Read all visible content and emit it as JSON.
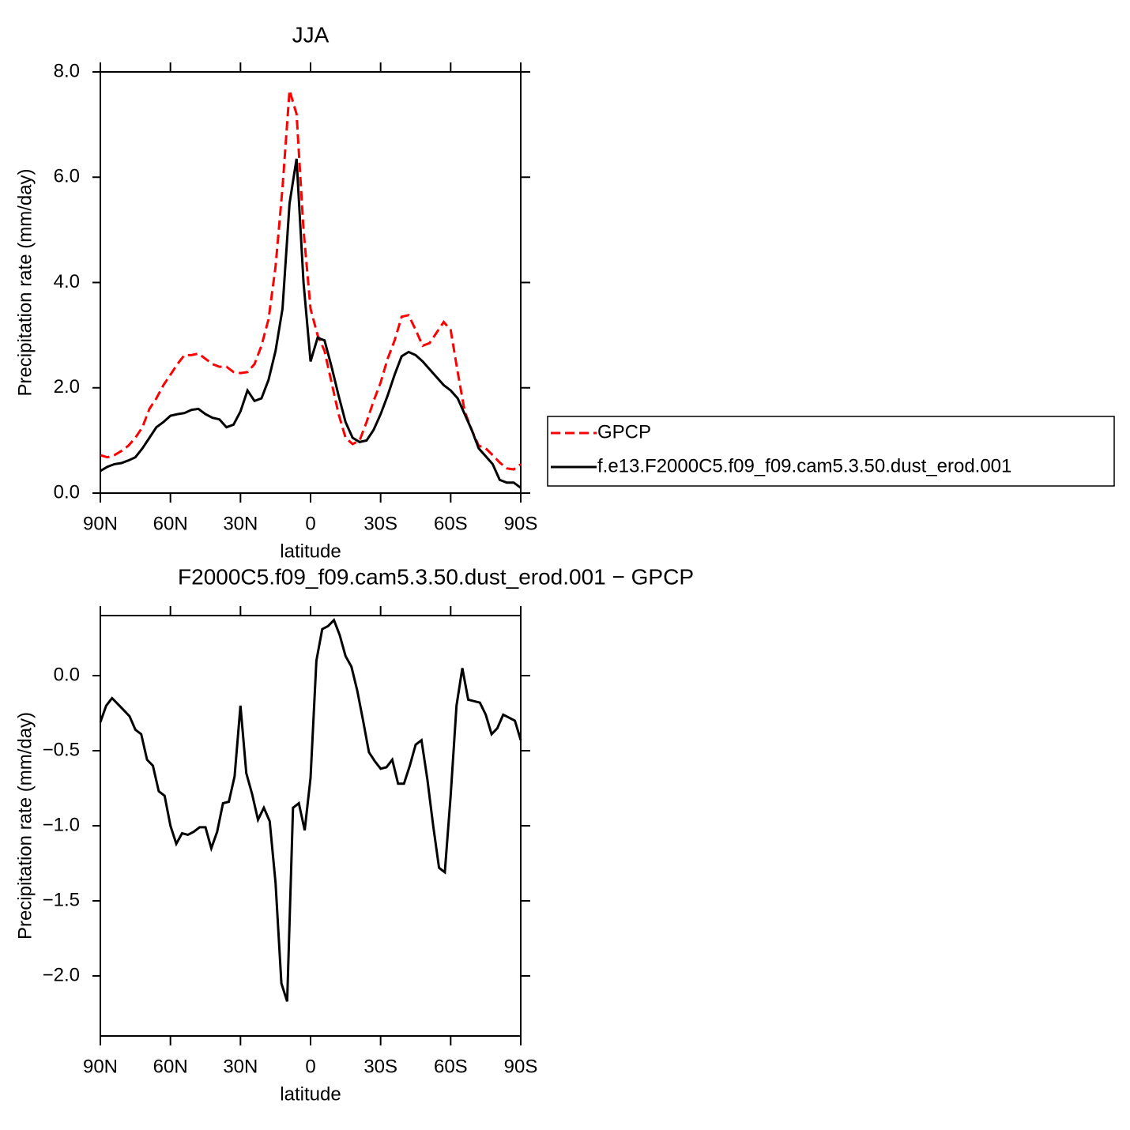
{
  "chart_data": [
    {
      "type": "line",
      "title": "JJA",
      "xlabel": "latitude",
      "ylabel": "Precipitation rate (mm/day)",
      "x": [
        90,
        87,
        84,
        81,
        78,
        75,
        72,
        69,
        66,
        63,
        60,
        57,
        54,
        51,
        48,
        45,
        42,
        39,
        36,
        33,
        30,
        27,
        24,
        21,
        18,
        15,
        12,
        9,
        6,
        3,
        0,
        -3,
        -6,
        -9,
        -12,
        -15,
        -18,
        -21,
        -24,
        -27,
        -30,
        -33,
        -36,
        -39,
        -42,
        -45,
        -48,
        -51,
        -54,
        -57,
        -60,
        -63,
        -66,
        -69,
        -72,
        -75,
        -78,
        -81,
        -84,
        -87,
        -90
      ],
      "xlim": [
        90,
        -90
      ],
      "xticks": [
        {
          "value": 90,
          "label": "90N"
        },
        {
          "value": 60,
          "label": "60N"
        },
        {
          "value": 30,
          "label": "30N"
        },
        0,
        {
          "value": -30,
          "label": "30S"
        },
        {
          "value": -60,
          "label": "60S"
        },
        {
          "value": -90,
          "label": "90S"
        }
      ],
      "ylim": [
        0,
        8
      ],
      "yticks": [
        {
          "value": 0,
          "label": "0.0"
        },
        {
          "value": 2,
          "label": "2.0"
        },
        {
          "value": 4,
          "label": "4.0"
        },
        {
          "value": 6,
          "label": "6.0"
        },
        {
          "value": 8,
          "label": "8.0"
        }
      ],
      "legend": "outside-right",
      "series": [
        {
          "name": "GPCP",
          "color": "#ff0000",
          "dash": true,
          "values": [
            0.72,
            0.68,
            0.72,
            0.8,
            0.9,
            1.05,
            1.25,
            1.6,
            1.8,
            2.05,
            2.25,
            2.45,
            2.62,
            2.62,
            2.65,
            2.55,
            2.45,
            2.4,
            2.4,
            2.3,
            2.28,
            2.3,
            2.45,
            2.8,
            3.3,
            4.3,
            5.8,
            7.65,
            7.2,
            5.0,
            3.5,
            3.0,
            2.7,
            2.1,
            1.5,
            1.05,
            0.93,
            1.0,
            1.35,
            1.75,
            2.1,
            2.55,
            2.9,
            3.35,
            3.38,
            3.1,
            2.8,
            2.85,
            3.05,
            3.25,
            3.1,
            2.3,
            1.55,
            1.2,
            0.9,
            0.85,
            0.72,
            0.58,
            0.47,
            0.45,
            0.55
          ]
        },
        {
          "name": "f.e13.F2000C5.f09_f09.cam5.3.50.dust_erod.001",
          "color": "#000000",
          "dash": false,
          "values": [
            0.42,
            0.5,
            0.55,
            0.57,
            0.62,
            0.68,
            0.85,
            1.05,
            1.25,
            1.35,
            1.47,
            1.5,
            1.52,
            1.58,
            1.6,
            1.5,
            1.43,
            1.4,
            1.25,
            1.3,
            1.55,
            1.95,
            1.75,
            1.8,
            2.15,
            2.7,
            3.5,
            5.5,
            6.35,
            4.0,
            2.5,
            2.95,
            2.9,
            2.4,
            1.85,
            1.35,
            1.05,
            0.97,
            1.0,
            1.2,
            1.5,
            1.85,
            2.25,
            2.6,
            2.68,
            2.62,
            2.5,
            2.35,
            2.2,
            2.05,
            1.95,
            1.8,
            1.5,
            1.2,
            0.85,
            0.7,
            0.55,
            0.25,
            0.2,
            0.2,
            0.1
          ]
        }
      ]
    },
    {
      "type": "line",
      "title": "F2000C5.f09_f09.cam5.3.50.dust_erod.001 − GPCP",
      "xlabel": "latitude",
      "ylabel": "Precipitation rate (mm/day)",
      "x": [
        90,
        87.5,
        85,
        82.5,
        80,
        77.5,
        75,
        72.5,
        70,
        67.5,
        65,
        62.5,
        60,
        57.5,
        55,
        52.5,
        50,
        47.5,
        45,
        42.5,
        40,
        37.5,
        35,
        32.5,
        30,
        27.5,
        25,
        22.5,
        20,
        17.5,
        15,
        12.5,
        10,
        7.5,
        5,
        2.5,
        0,
        -2.5,
        -5,
        -7.5,
        -10,
        -12.5,
        -15,
        -17.5,
        -20,
        -22.5,
        -25,
        -27.5,
        -30,
        -32.5,
        -35,
        -37.5,
        -40,
        -42.5,
        -45,
        -47.5,
        -50,
        -52.5,
        -55,
        -57.5,
        -60,
        -62.5,
        -65,
        -67.5,
        -70,
        -72.5,
        -75,
        -77.5,
        -80,
        -82.5,
        -85,
        -87.5,
        -90
      ],
      "xlim": [
        90,
        -90
      ],
      "xticks": [
        {
          "value": 90,
          "label": "90N"
        },
        {
          "value": 60,
          "label": "60N"
        },
        {
          "value": 30,
          "label": "30N"
        },
        0,
        {
          "value": -30,
          "label": "30S"
        },
        {
          "value": -60,
          "label": "60S"
        },
        {
          "value": -90,
          "label": "90S"
        }
      ],
      "ylim": [
        -2.4,
        0.4
      ],
      "yticks": [
        {
          "value": 0,
          "label": "0.0"
        },
        {
          "value": -0.5,
          "label": "−0.5"
        },
        {
          "value": -1,
          "label": "−1.0"
        },
        {
          "value": -1.5,
          "label": "−1.5"
        },
        {
          "value": -2,
          "label": "−2.0"
        }
      ],
      "color": "#000000",
      "values": [
        -0.31,
        -0.2,
        -0.15,
        -0.19,
        -0.23,
        -0.27,
        -0.36,
        -0.39,
        -0.56,
        -0.6,
        -0.77,
        -0.8,
        -1.0,
        -1.12,
        -1.05,
        -1.06,
        -1.04,
        -1.01,
        -1.01,
        -1.15,
        -1.04,
        -0.85,
        -0.84,
        -0.67,
        -0.2,
        -0.65,
        -0.79,
        -0.96,
        -0.88,
        -0.97,
        -1.38,
        -2.05,
        -2.17,
        -0.88,
        -0.85,
        -1.03,
        -0.68,
        0.1,
        0.31,
        0.33,
        0.37,
        0.27,
        0.13,
        0.06,
        -0.1,
        -0.3,
        -0.51,
        -0.57,
        -0.62,
        -0.61,
        -0.56,
        -0.72,
        -0.72,
        -0.6,
        -0.46,
        -0.43,
        -0.69,
        -1.0,
        -1.28,
        -1.31,
        -0.8,
        -0.2,
        0.05,
        -0.16,
        -0.17,
        -0.18,
        -0.26,
        -0.39,
        -0.35,
        -0.26,
        -0.28,
        -0.3,
        -0.43
      ]
    }
  ]
}
